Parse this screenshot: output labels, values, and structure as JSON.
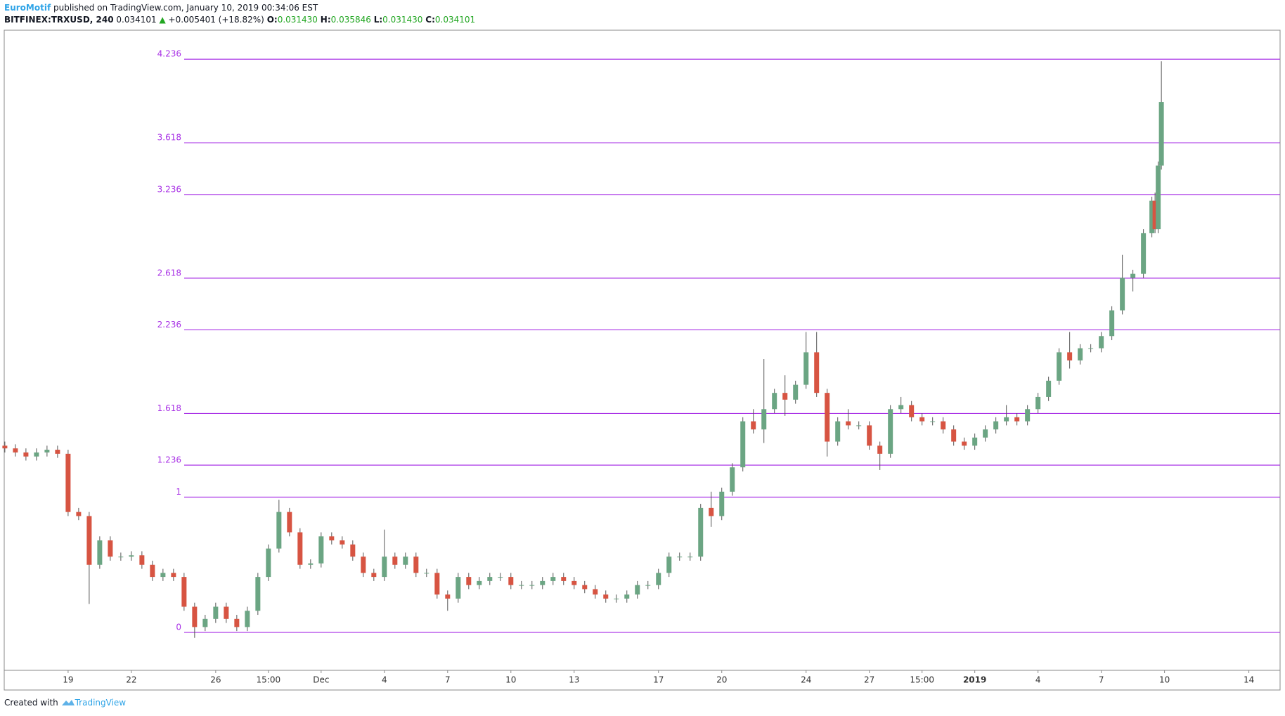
{
  "header": {
    "author": "EuroMotif",
    "published": "published on TradingView.com, January 10, 2019 00:34:06 EST",
    "symbol": "BITFINEX:TRXUSD, 240",
    "price": "0.034101",
    "arrow": "▲",
    "change": "+0.005401 (+18.82%)",
    "ohlc": [
      {
        "label": "O:",
        "value": "0.031430"
      },
      {
        "label": "H:",
        "value": "0.035846"
      },
      {
        "label": "L:",
        "value": "0.031430"
      },
      {
        "label": "C:",
        "value": "0.034101"
      }
    ]
  },
  "chart_data": {
    "type": "candlestick",
    "x": [
      -3,
      -2.5,
      -2,
      -1.5,
      -1,
      -0.5,
      0,
      0.5,
      1,
      1.5,
      2,
      2.5,
      3,
      3.5,
      4,
      4.5,
      5,
      5.5,
      6,
      6.5,
      7,
      7.5,
      8,
      8.5,
      9,
      9.5,
      10,
      10.5,
      11,
      11.5,
      12,
      12.5,
      13,
      13.5,
      14,
      14.5,
      15,
      15.5,
      16,
      16.5,
      17,
      17.5,
      18,
      18.5,
      19,
      19.5,
      20,
      20.5,
      21,
      21.5,
      22,
      22.5,
      23,
      23.5,
      24,
      24.5,
      25,
      25.5,
      26,
      26.5,
      27,
      27.5,
      28,
      28.5,
      29,
      29.5,
      30,
      30.5,
      31,
      31.5,
      32,
      32.5,
      33,
      33.5,
      34,
      34.5,
      35,
      35.5,
      36,
      36.5,
      37,
      37.5,
      38,
      38.5,
      39,
      39.5,
      40,
      40.5,
      41,
      41.5,
      42,
      42.5,
      43,
      43.5,
      44,
      44.5,
      45,
      45.5,
      46,
      46.5,
      47,
      47.5,
      48,
      48.5,
      49,
      49.5,
      50,
      50.5,
      51,
      51.4,
      51.55,
      51.7,
      51.85
    ],
    "open": [
      1.38,
      1.36,
      1.33,
      1.3,
      1.33,
      1.35,
      1.32,
      0.89,
      0.86,
      0.5,
      0.68,
      0.56,
      0.56,
      0.57,
      0.5,
      0.41,
      0.44,
      0.41,
      0.19,
      0.04,
      0.1,
      0.19,
      0.1,
      0.04,
      0.16,
      0.41,
      0.62,
      0.89,
      0.74,
      0.5,
      0.51,
      0.71,
      0.68,
      0.65,
      0.56,
      0.44,
      0.41,
      0.56,
      0.5,
      0.56,
      0.44,
      0.44,
      0.28,
      0.25,
      0.41,
      0.35,
      0.38,
      0.41,
      0.41,
      0.35,
      0.35,
      0.35,
      0.38,
      0.41,
      0.38,
      0.35,
      0.32,
      0.28,
      0.25,
      0.25,
      0.28,
      0.35,
      0.35,
      0.44,
      0.56,
      0.56,
      0.56,
      0.92,
      0.86,
      1.04,
      1.22,
      1.56,
      1.5,
      1.65,
      1.77,
      1.72,
      1.83,
      2.07,
      1.77,
      1.41,
      1.56,
      1.53,
      1.53,
      1.38,
      1.32,
      1.65,
      1.68,
      1.59,
      1.56,
      1.56,
      1.5,
      1.41,
      1.38,
      1.44,
      1.5,
      1.56,
      1.59,
      1.56,
      1.65,
      1.74,
      1.86,
      2.07,
      2.01,
      2.1,
      2.1,
      2.19,
      2.38,
      2.62,
      2.65,
      2.95,
      3.19,
      2.98,
      3.45
    ],
    "high": [
      1.41,
      1.39,
      1.36,
      1.36,
      1.38,
      1.38,
      1.35,
      0.92,
      0.89,
      0.71,
      0.71,
      0.59,
      0.6,
      0.6,
      0.53,
      0.47,
      0.47,
      0.44,
      0.22,
      0.13,
      0.22,
      0.22,
      0.13,
      0.19,
      0.44,
      0.65,
      0.98,
      0.92,
      0.77,
      0.54,
      0.74,
      0.74,
      0.71,
      0.68,
      0.59,
      0.47,
      0.76,
      0.59,
      0.59,
      0.59,
      0.47,
      0.47,
      0.31,
      0.44,
      0.44,
      0.41,
      0.44,
      0.44,
      0.44,
      0.38,
      0.38,
      0.41,
      0.44,
      0.44,
      0.41,
      0.38,
      0.35,
      0.31,
      0.28,
      0.31,
      0.38,
      0.38,
      0.47,
      0.59,
      0.59,
      0.59,
      0.95,
      1.04,
      1.07,
      1.25,
      1.59,
      1.65,
      2.02,
      1.8,
      1.9,
      1.86,
      2.22,
      2.22,
      1.8,
      1.59,
      1.65,
      1.56,
      1.56,
      1.41,
      1.68,
      1.74,
      1.71,
      1.62,
      1.59,
      1.59,
      1.53,
      1.44,
      1.47,
      1.53,
      1.59,
      1.68,
      1.62,
      1.68,
      1.77,
      1.89,
      2.1,
      2.22,
      2.13,
      2.13,
      2.22,
      2.41,
      2.79,
      2.68,
      2.98,
      3.22,
      3.25,
      3.48,
      4.22
    ],
    "low": [
      1.33,
      1.3,
      1.27,
      1.27,
      1.3,
      1.29,
      0.86,
      0.83,
      0.21,
      0.47,
      0.53,
      0.53,
      0.53,
      0.47,
      0.38,
      0.38,
      0.38,
      0.16,
      -0.04,
      0.01,
      0.07,
      0.07,
      0.01,
      0.01,
      0.13,
      0.38,
      0.59,
      0.71,
      0.47,
      0.47,
      0.48,
      0.65,
      0.62,
      0.53,
      0.41,
      0.38,
      0.38,
      0.47,
      0.47,
      0.41,
      0.41,
      0.25,
      0.16,
      0.22,
      0.32,
      0.32,
      0.35,
      0.38,
      0.32,
      0.32,
      0.32,
      0.32,
      0.35,
      0.35,
      0.32,
      0.29,
      0.25,
      0.22,
      0.22,
      0.22,
      0.25,
      0.32,
      0.32,
      0.41,
      0.53,
      0.53,
      0.53,
      0.78,
      0.83,
      1.01,
      1.19,
      1.47,
      1.4,
      1.62,
      1.6,
      1.69,
      1.8,
      1.74,
      1.3,
      1.38,
      1.5,
      1.5,
      1.35,
      1.2,
      1.29,
      1.62,
      1.56,
      1.53,
      1.53,
      1.47,
      1.38,
      1.35,
      1.35,
      1.41,
      1.47,
      1.53,
      1.53,
      1.53,
      1.62,
      1.71,
      1.83,
      1.95,
      1.98,
      2.07,
      2.07,
      2.16,
      2.35,
      2.52,
      2.62,
      2.92,
      2.95,
      2.95,
      3.42
    ],
    "close": [
      1.36,
      1.33,
      1.3,
      1.33,
      1.35,
      1.32,
      0.89,
      0.86,
      0.5,
      0.68,
      0.56,
      0.56,
      0.57,
      0.5,
      0.41,
      0.44,
      0.41,
      0.19,
      0.04,
      0.1,
      0.19,
      0.1,
      0.04,
      0.16,
      0.41,
      0.62,
      0.89,
      0.74,
      0.5,
      0.51,
      0.71,
      0.68,
      0.65,
      0.56,
      0.44,
      0.41,
      0.56,
      0.5,
      0.56,
      0.44,
      0.44,
      0.28,
      0.25,
      0.41,
      0.35,
      0.38,
      0.41,
      0.41,
      0.35,
      0.35,
      0.35,
      0.38,
      0.41,
      0.38,
      0.35,
      0.32,
      0.28,
      0.25,
      0.25,
      0.28,
      0.35,
      0.35,
      0.44,
      0.56,
      0.56,
      0.56,
      0.92,
      0.86,
      1.04,
      1.22,
      1.56,
      1.5,
      1.65,
      1.77,
      1.72,
      1.83,
      2.07,
      1.77,
      1.41,
      1.56,
      1.53,
      1.53,
      1.38,
      1.32,
      1.65,
      1.68,
      1.59,
      1.56,
      1.56,
      1.5,
      1.41,
      1.38,
      1.44,
      1.5,
      1.56,
      1.59,
      1.56,
      1.65,
      1.74,
      1.86,
      2.07,
      2.01,
      2.1,
      2.1,
      2.19,
      2.38,
      2.62,
      2.65,
      2.95,
      3.19,
      2.98,
      3.45,
      3.92
    ],
    "up_color": "#6ba583",
    "down_color": "#d75442",
    "xlim": [
      -3.03,
      57.48
    ],
    "xticks": [
      {
        "value": 0,
        "label": "19"
      },
      {
        "value": 3,
        "label": "22"
      },
      {
        "value": 7,
        "label": "26"
      },
      {
        "value": 9.5,
        "label": "15:00"
      },
      {
        "value": 12,
        "label": "Dec"
      },
      {
        "value": 15,
        "label": "4"
      },
      {
        "value": 18,
        "label": "7"
      },
      {
        "value": 21,
        "label": "10"
      },
      {
        "value": 24,
        "label": "13"
      },
      {
        "value": 28,
        "label": "17"
      },
      {
        "value": 31,
        "label": "20"
      },
      {
        "value": 35,
        "label": "24"
      },
      {
        "value": 38,
        "label": "27"
      },
      {
        "value": 40.5,
        "label": "15:00"
      },
      {
        "value": 43,
        "label": "2019"
      },
      {
        "value": 46,
        "label": "4"
      },
      {
        "value": 49,
        "label": "7"
      },
      {
        "value": 52,
        "label": "10"
      },
      {
        "value": 56,
        "label": "14"
      }
    ],
    "ylim": [
      -0.28,
      4.45
    ],
    "fib_levels": [
      0,
      1,
      1.236,
      1.618,
      2.236,
      2.618,
      3.236,
      3.618,
      4.236
    ],
    "fib_color": "#a932e6"
  },
  "footer": {
    "text": "Created with",
    "brand": "TradingView"
  }
}
